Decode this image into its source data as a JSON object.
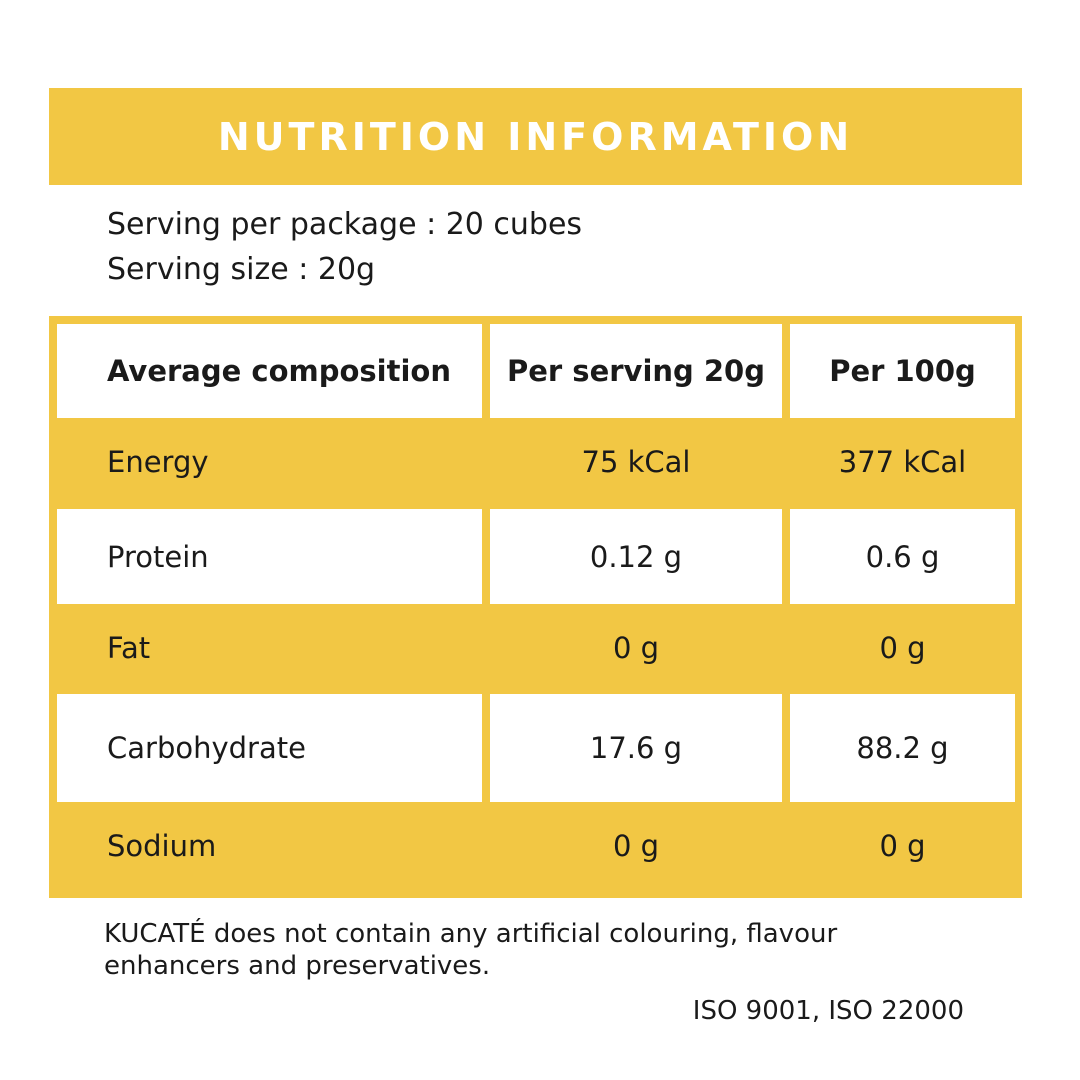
{
  "title": "NUTRITION INFORMATION",
  "serving": {
    "per_package": "Serving per package : 20 cubes",
    "size": "Serving size : 20g"
  },
  "table": {
    "headers": [
      "Average composition",
      "Per serving 20g",
      "Per 100g"
    ],
    "rows": [
      [
        "Energy",
        "75 kCal",
        "377 kCal"
      ],
      [
        "Protein",
        "0.12 g",
        "0.6 g"
      ],
      [
        "Fat",
        "0 g",
        "0 g"
      ],
      [
        "Carbohydrate",
        "17.6 g",
        "88.2 g"
      ],
      [
        "Sodium",
        "0 g",
        "0 g"
      ]
    ]
  },
  "note": "KUCATÉ does not contain any artificial colouring, flavour enhancers and preservatives.",
  "certifications": "ISO 9001, ISO 22000",
  "colors": {
    "accent": "#F2C744",
    "text": "#1a1a1a",
    "background": "#ffffff"
  }
}
